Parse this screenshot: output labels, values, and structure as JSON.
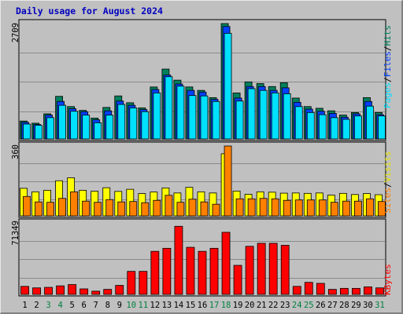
{
  "title": "Daily usage for August 2024",
  "colors": {
    "background": "#c0c0c0",
    "plot_background": "#c0c0c0",
    "gridline": "#8a8a8a",
    "hits": "#00805c",
    "files": "#0040ff",
    "pages": "#00e0ff",
    "visits": "#ffff00",
    "sites": "#ff8000",
    "kbytes": "#ff0000",
    "weekday_label": "#000000",
    "weekend_label": "#008040",
    "title": "#0000c0"
  },
  "chart_data": [
    {
      "type": "bar",
      "title": "Daily usage for August 2024",
      "categories": [
        "1",
        "2",
        "3",
        "4",
        "5",
        "6",
        "7",
        "8",
        "9",
        "10",
        "11",
        "12",
        "13",
        "14",
        "15",
        "16",
        "17",
        "18",
        "19",
        "20",
        "21",
        "22",
        "23",
        "24",
        "25",
        "26",
        "27",
        "28",
        "29",
        "30",
        "31"
      ],
      "weekend_days": [
        "3",
        "4",
        "10",
        "11",
        "17",
        "18",
        "24",
        "25",
        "31"
      ],
      "y_tick_labels": [
        "2709"
      ],
      "ylim": [
        0,
        2709
      ],
      "grid": true,
      "series": [
        {
          "name": "Hits",
          "values": [
            420,
            370,
            590,
            1000,
            760,
            670,
            490,
            740,
            1010,
            850,
            730,
            1220,
            1640,
            1380,
            1220,
            1140,
            970,
            2709,
            1080,
            1340,
            1300,
            1230,
            1320,
            960,
            760,
            720,
            660,
            560,
            620,
            970,
            620
          ]
        },
        {
          "name": "Files",
          "values": [
            390,
            340,
            560,
            880,
            710,
            640,
            450,
            660,
            890,
            790,
            690,
            1160,
            1500,
            1290,
            1140,
            1100,
            930,
            2640,
            960,
            1230,
            1230,
            1140,
            1200,
            860,
            700,
            650,
            600,
            510,
            590,
            880,
            570
          ]
        },
        {
          "name": "Pages",
          "values": [
            350,
            320,
            500,
            790,
            650,
            560,
            380,
            560,
            810,
            730,
            640,
            1080,
            1460,
            1240,
            1020,
            1010,
            880,
            2480,
            890,
            1180,
            1140,
            1080,
            1060,
            760,
            620,
            570,
            500,
            460,
            540,
            770,
            540
          ]
        }
      ]
    },
    {
      "type": "bar",
      "categories": [
        "1",
        "2",
        "3",
        "4",
        "5",
        "6",
        "7",
        "8",
        "9",
        "10",
        "11",
        "12",
        "13",
        "14",
        "15",
        "16",
        "17",
        "18",
        "19",
        "20",
        "21",
        "22",
        "23",
        "24",
        "25",
        "26",
        "27",
        "28",
        "29",
        "30",
        "31"
      ],
      "y_tick_labels": [
        "360"
      ],
      "ylim": [
        0,
        360
      ],
      "grid": true,
      "series": [
        {
          "name": "Sites",
          "values": [
            142,
            124,
            132,
            181,
            196,
            132,
            127,
            145,
            126,
            137,
            115,
            123,
            144,
            118,
            147,
            124,
            118,
            320,
            128,
            111,
            124,
            122,
            117,
            118,
            116,
            118,
            107,
            116,
            110,
            115,
            109
          ]
        },
        {
          "name": "Visits",
          "values": [
            100,
            72,
            70,
            90,
            124,
            76,
            70,
            84,
            72,
            74,
            68,
            80,
            106,
            70,
            86,
            72,
            60,
            360,
            88,
            88,
            90,
            88,
            80,
            82,
            82,
            82,
            70,
            76,
            76,
            88,
            74
          ]
        }
      ]
    },
    {
      "type": "bar",
      "categories": [
        "1",
        "2",
        "3",
        "4",
        "5",
        "6",
        "7",
        "8",
        "9",
        "10",
        "11",
        "12",
        "13",
        "14",
        "15",
        "16",
        "17",
        "18",
        "19",
        "20",
        "21",
        "22",
        "23",
        "24",
        "25",
        "26",
        "27",
        "28",
        "29",
        "30",
        "31"
      ],
      "y_tick_labels": [
        "71349"
      ],
      "ylim": [
        0,
        71349
      ],
      "grid": true,
      "series": [
        {
          "name": "KBytes",
          "values": [
            8000,
            6500,
            7000,
            8500,
            9800,
            5500,
            3200,
            5000,
            9000,
            23000,
            23000,
            43000,
            46000,
            68000,
            47000,
            43000,
            46000,
            62000,
            29000,
            48000,
            51000,
            51000,
            49000,
            8000,
            12000,
            11000,
            5000,
            6000,
            6000,
            7500,
            6500
          ]
        }
      ]
    }
  ],
  "right_labels": {
    "top": {
      "pages": "Pages",
      "files": "Files",
      "hits": "Hits",
      "separator": "/"
    },
    "middle": {
      "sites": "Sites",
      "visits": "Visits",
      "separator": "/"
    },
    "bottom": {
      "kbytes": "KBytes"
    }
  }
}
